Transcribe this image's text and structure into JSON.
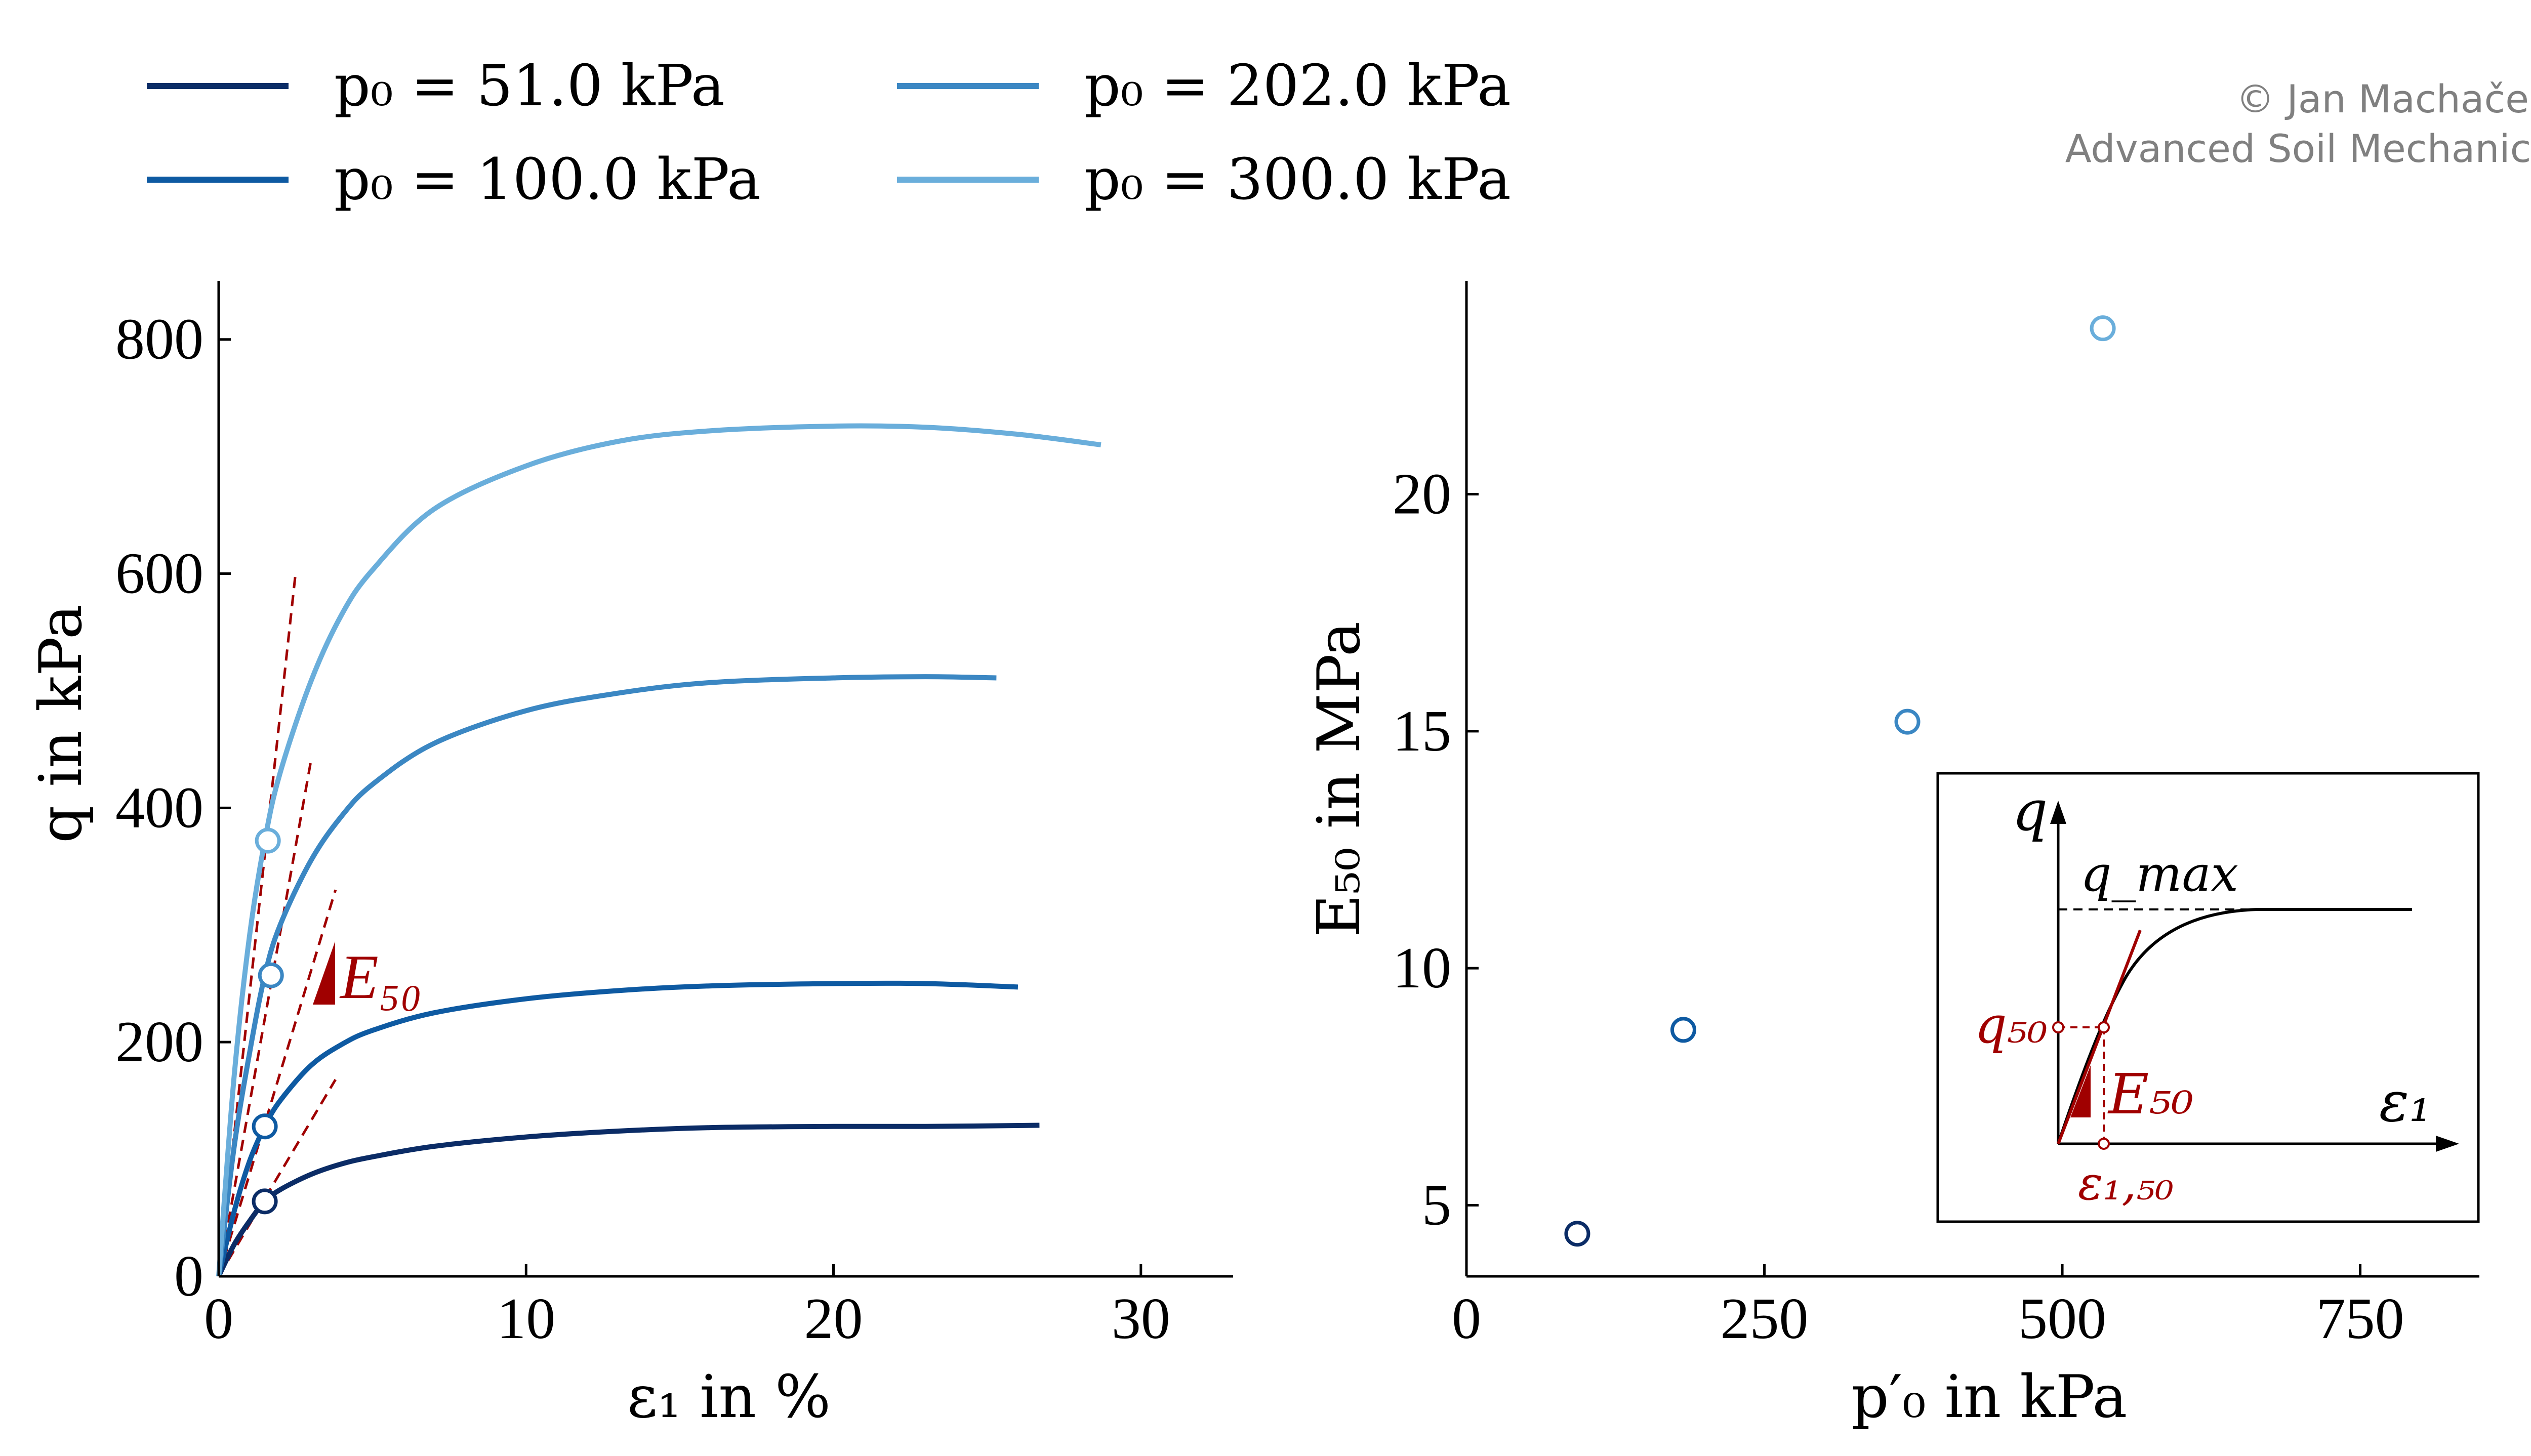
{
  "credit": {
    "line1": "© Jan Machaček",
    "line2": "Advanced Soil Mechanics"
  },
  "colors": {
    "series": [
      "#0b2c66",
      "#0e5aa2",
      "#3b87c3",
      "#6aaedb"
    ],
    "tangent": "#a00000",
    "axis": "#000000"
  },
  "legend": [
    {
      "label": "p₀ = 51.0 kPa"
    },
    {
      "label": "p₀ = 100.0 kPa"
    },
    {
      "label": "p₀ = 202.0 kPa"
    },
    {
      "label": "p₀ = 300.0 kPa"
    }
  ],
  "chart_data": [
    {
      "type": "line",
      "xlabel": "ε₁ in %",
      "ylabel": "q in kPa",
      "xlim": [
        0,
        33
      ],
      "ylim": [
        0,
        850
      ],
      "xticks": [
        0,
        10,
        20,
        30
      ],
      "yticks": [
        0,
        200,
        400,
        600,
        800
      ],
      "annotation": "E₅₀",
      "series": [
        {
          "name": "p₀ = 51.0 kPa",
          "x": [
            0,
            0.5,
            1,
            1.5,
            2,
            3,
            4,
            5,
            7,
            10,
            13,
            16,
            20,
            23,
            26.7
          ],
          "y": [
            0,
            27,
            47,
            64,
            74,
            87,
            96,
            102,
            111,
            119,
            124,
            127,
            128,
            128,
            129
          ],
          "e50_point": [
            1.5,
            64
          ],
          "tangent_end": [
            3.8,
            168
          ]
        },
        {
          "name": "p₀ = 100.0 kPa",
          "x": [
            0,
            0.5,
            1,
            1.5,
            2,
            3,
            4,
            5,
            7,
            10,
            13,
            16,
            20,
            23,
            26
          ],
          "y": [
            0,
            55,
            98,
            128,
            150,
            180,
            198,
            210,
            225,
            237,
            244,
            248,
            250,
            250,
            247
          ],
          "e50_point": [
            1.5,
            128
          ],
          "tangent_end": [
            3.8,
            330
          ]
        },
        {
          "name": "p₀ = 202.0 kPa",
          "x": [
            0,
            0.5,
            1,
            1.5,
            2,
            3,
            4,
            5,
            7,
            10,
            13,
            16,
            20,
            23,
            25.3
          ],
          "y": [
            0,
            110,
            190,
            257,
            300,
            355,
            393,
            420,
            455,
            483,
            498,
            507,
            511,
            512,
            511
          ],
          "e50_point": [
            1.7,
            257
          ],
          "tangent_end": [
            3,
            440
          ]
        },
        {
          "name": "p₀ = 300.0 kPa",
          "x": [
            0,
            0.5,
            1,
            1.5,
            2,
            3,
            4,
            5,
            7,
            10,
            13,
            16,
            20,
            23,
            26,
            28.7
          ],
          "y": [
            0,
            170,
            290,
            372,
            430,
            508,
            565,
            603,
            655,
            692,
            713,
            722,
            726,
            725,
            719,
            710
          ],
          "e50_point": [
            1.6,
            372
          ],
          "tangent_end": [
            2.5,
            600
          ]
        }
      ]
    },
    {
      "type": "scatter",
      "xlabel": "p′₀ in kPa",
      "ylabel": "E₅₀ in MPa",
      "xlim": [
        0,
        850
      ],
      "ylim": [
        3.5,
        24.5
      ],
      "xticks": [
        0,
        250,
        500,
        750
      ],
      "yticks": [
        5,
        10,
        15,
        20
      ],
      "points": [
        {
          "series": "p₀ = 51.0 kPa",
          "x": 93,
          "y": 4.4
        },
        {
          "series": "p₀ = 100.0 kPa",
          "x": 182,
          "y": 8.7
        },
        {
          "series": "p₀ = 202.0 kPa",
          "x": 370,
          "y": 15.2
        },
        {
          "series": "p₀ = 300.0 kPa",
          "x": 534,
          "y": 23.5
        }
      ],
      "inset": {
        "labels": {
          "q": "q",
          "qmax": "q_max",
          "q50": "q₅₀",
          "e50": "E₅₀",
          "eps1": "ε₁",
          "eps150": "ε₁,₅₀"
        }
      }
    }
  ]
}
